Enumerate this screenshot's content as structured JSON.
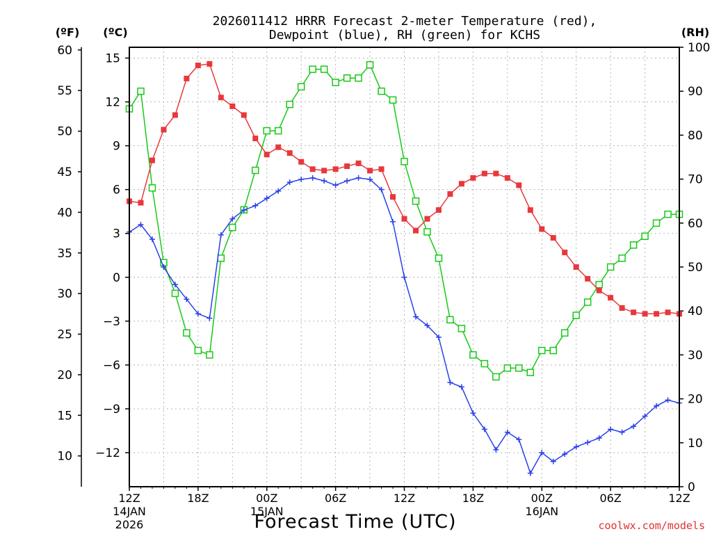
{
  "chart_data": {
    "type": "line",
    "title_line1": "2026011412 HRRR Forecast 2-meter Temperature (red),",
    "title_line2": "Dewpoint (blue), RH (green) for KCHS",
    "xlabel": "Forecast Time (UTC)",
    "watermark": "coolwx.com/models",
    "unit_f": "(ºF)",
    "unit_c": "(ºC)",
    "unit_rh": "(RH)",
    "xlim": [
      0,
      48
    ],
    "x_ticks": [
      {
        "x": 0,
        "label": "12Z",
        "sub1": "14JAN",
        "sub2": "2026"
      },
      {
        "x": 6,
        "label": "18Z",
        "sub1": "",
        "sub2": ""
      },
      {
        "x": 12,
        "label": "00Z",
        "sub1": "15JAN",
        "sub2": ""
      },
      {
        "x": 18,
        "label": "06Z",
        "sub1": "",
        "sub2": ""
      },
      {
        "x": 24,
        "label": "12Z",
        "sub1": "",
        "sub2": ""
      },
      {
        "x": 30,
        "label": "18Z",
        "sub1": "",
        "sub2": ""
      },
      {
        "x": 36,
        "label": "00Z",
        "sub1": "16JAN",
        "sub2": ""
      },
      {
        "x": 42,
        "label": "06Z",
        "sub1": "",
        "sub2": ""
      },
      {
        "x": 48,
        "label": "12Z",
        "sub1": "",
        "sub2": ""
      }
    ],
    "ylim_c": [
      -14,
      15.5
    ],
    "yticks_c": [
      15,
      12,
      9,
      6,
      3,
      0,
      -3,
      -6,
      -9,
      -12
    ],
    "yticks_c_labels": [
      "15",
      "12",
      "9",
      "6",
      "3",
      "0",
      "−3",
      "−6",
      "−9",
      "−12"
    ],
    "yticks_f": [
      60,
      55,
      50,
      45,
      40,
      35,
      30,
      25,
      20,
      15,
      10
    ],
    "ylim_rh": [
      0,
      100
    ],
    "yticks_rh": [
      100,
      90,
      80,
      70,
      60,
      50,
      40,
      30,
      20,
      10,
      0
    ],
    "colors": {
      "temperature": "#e8383c",
      "dewpoint": "#2840e8",
      "rh": "#18c818",
      "grid": "#b4b4b4"
    },
    "series": [
      {
        "name": "Temperature (°C)",
        "color": "#e8383c",
        "marker": "square-filled",
        "values": [
          5.2,
          5.1,
          8.0,
          10.1,
          11.1,
          13.6,
          14.5,
          14.6,
          12.3,
          11.7,
          11.1,
          9.5,
          8.4,
          8.9,
          8.5,
          7.9,
          7.4,
          7.3,
          7.4,
          7.6,
          7.8,
          7.3,
          7.4,
          5.5,
          4.0,
          3.2,
          4.0,
          4.6,
          5.7,
          6.4,
          6.8,
          7.1,
          7.1,
          6.8,
          6.3,
          4.6,
          3.3,
          2.7,
          1.7,
          0.7,
          -0.1,
          -0.9,
          -1.4,
          -2.1,
          -2.4,
          -2.5,
          -2.5,
          -2.4,
          -2.5
        ]
      },
      {
        "name": "Dewpoint (°C)",
        "color": "#2840e8",
        "marker": "plus",
        "values": [
          3.1,
          3.6,
          2.6,
          0.7,
          -0.5,
          -1.5,
          -2.5,
          -2.8,
          2.9,
          4.0,
          4.6,
          4.9,
          5.4,
          5.9,
          6.5,
          6.7,
          6.8,
          6.6,
          6.3,
          6.6,
          6.8,
          6.7,
          6.0,
          3.8,
          0.0,
          -2.7,
          -3.3,
          -4.1,
          -7.2,
          -7.5,
          -9.3,
          -10.4,
          -11.8,
          -10.6,
          -11.1,
          -13.4,
          -12.0,
          -12.6,
          -12.1,
          -11.6,
          -11.3,
          -11.0,
          -10.4,
          -10.6,
          -10.2,
          -9.5,
          -8.8,
          -8.4,
          -8.6
        ]
      },
      {
        "name": "RH (%)",
        "color": "#18c818",
        "marker": "square-open",
        "values": [
          86,
          90,
          68,
          51,
          44,
          35,
          31,
          30,
          52,
          59,
          63,
          72,
          81,
          81,
          87,
          91,
          95,
          95,
          92,
          93,
          93,
          96,
          90,
          88,
          74,
          65,
          58,
          52,
          38,
          36,
          30,
          28,
          25,
          27,
          27,
          26,
          31,
          31,
          35,
          39,
          42,
          46,
          50,
          52,
          55,
          57,
          60,
          62,
          62
        ]
      }
    ]
  }
}
